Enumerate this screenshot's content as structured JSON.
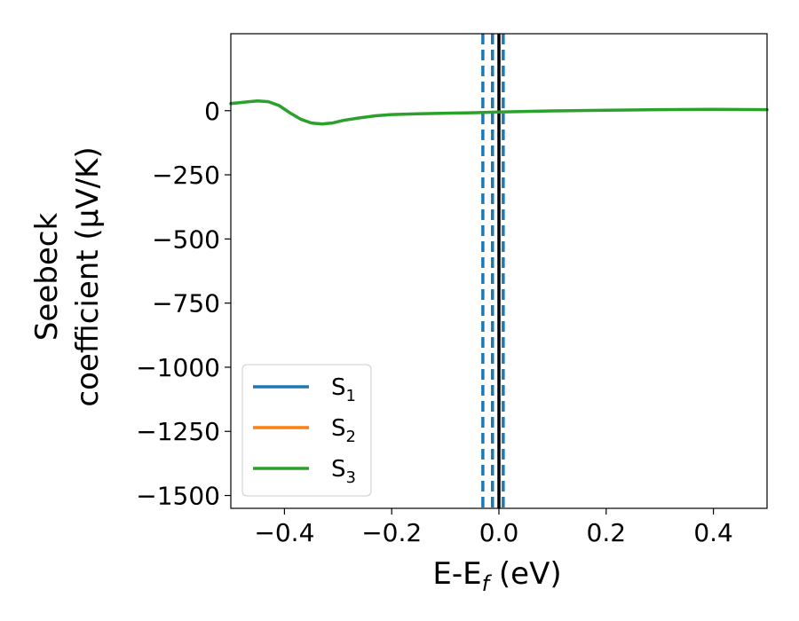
{
  "chart_data": {
    "type": "line",
    "title": "",
    "xlabel": {
      "main": "E-E",
      "sub": "f",
      "unit": " (eV)"
    },
    "ylabel": {
      "line1": "Seebeck",
      "line2": "coefficient  (μV/K)"
    },
    "xlim": [
      -0.5,
      0.5
    ],
    "ylim": [
      -1550,
      300
    ],
    "xticks": [
      -0.4,
      -0.2,
      0.0,
      0.2,
      0.4
    ],
    "xtick_labels": [
      "−0.4",
      "−0.2",
      "0.0",
      "0.2",
      "0.4"
    ],
    "yticks": [
      0,
      -250,
      -500,
      -750,
      -1000,
      -1250,
      -1500
    ],
    "ytick_labels": [
      "0",
      "−250",
      "−500",
      "−750",
      "−1000",
      "−1250",
      "−1500"
    ],
    "grid": false,
    "legend_position": "lower-left",
    "series": [
      {
        "name": "S",
        "sub": "1",
        "color": "#1f77b4",
        "x": [],
        "y": []
      },
      {
        "name": "S",
        "sub": "2",
        "color": "#ff7f0e",
        "x": [],
        "y": []
      },
      {
        "name": "S",
        "sub": "3",
        "color": "#2ca02c",
        "x": [
          -0.5,
          -0.47,
          -0.45,
          -0.43,
          -0.41,
          -0.39,
          -0.37,
          -0.35,
          -0.33,
          -0.31,
          -0.29,
          -0.26,
          -0.23,
          -0.2,
          -0.15,
          -0.1,
          -0.05,
          0.0,
          0.05,
          0.1,
          0.2,
          0.3,
          0.4,
          0.5
        ],
        "y": [
          28,
          34,
          38,
          35,
          20,
          -8,
          -33,
          -48,
          -52,
          -48,
          -38,
          -28,
          -20,
          -15,
          -12,
          -10,
          -8,
          -5,
          -3,
          -1,
          2,
          4,
          5,
          4
        ]
      }
    ],
    "vlines": [
      {
        "x": -0.03,
        "style": "dashed",
        "color": "#1f77b4"
      },
      {
        "x": -0.012,
        "style": "dashed",
        "color": "#1f77b4"
      },
      {
        "x": 0.008,
        "style": "dashed",
        "color": "#1f77b4"
      },
      {
        "x": 0.0,
        "style": "solid",
        "color": "#000000"
      }
    ]
  }
}
